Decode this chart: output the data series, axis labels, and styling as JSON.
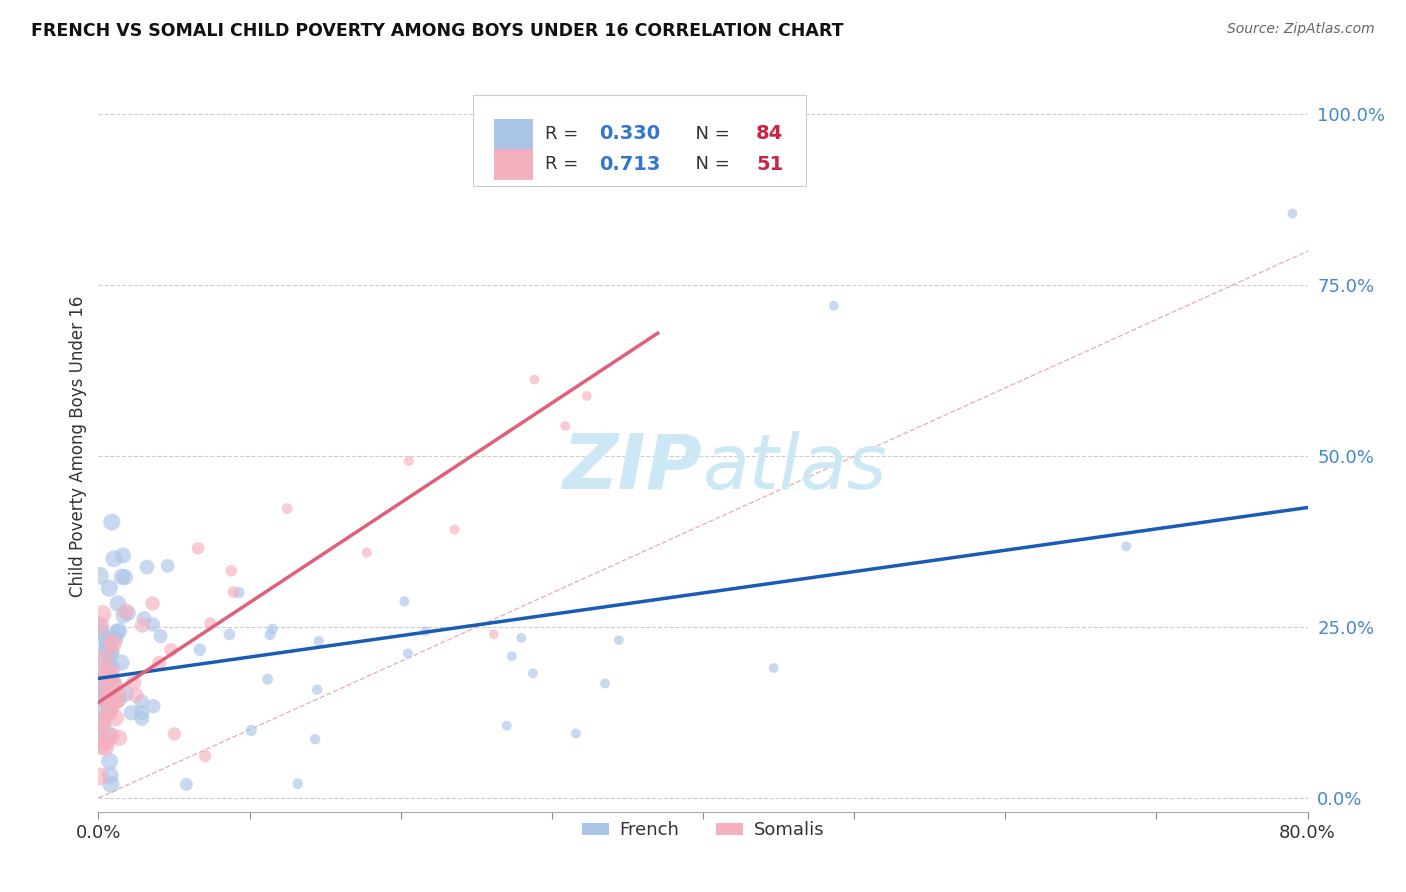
{
  "title": "FRENCH VS SOMALI CHILD POVERTY AMONG BOYS UNDER 16 CORRELATION CHART",
  "source": "Source: ZipAtlas.com",
  "ylabel": "Child Poverty Among Boys Under 16",
  "french_R": 0.33,
  "french_N": 84,
  "somali_R": 0.713,
  "somali_N": 51,
  "french_color": "#aac4e8",
  "somali_color": "#f5b0bf",
  "french_line_color": "#1a5cb5",
  "somali_line_color": "#e0607a",
  "diag_line_color": "#e0a0b0",
  "background_color": "#ffffff",
  "grid_color": "#cccccc",
  "watermark_color": "#cde8f5",
  "xlim": [
    0.0,
    0.8
  ],
  "ylim": [
    -0.02,
    1.05
  ],
  "french_line_x0": 0.0,
  "french_line_y0": 0.175,
  "french_line_x1": 0.8,
  "french_line_y1": 0.425,
  "somali_line_x0": 0.0,
  "somali_line_y0": 0.14,
  "somali_line_x1": 0.37,
  "somali_line_y1": 0.68
}
